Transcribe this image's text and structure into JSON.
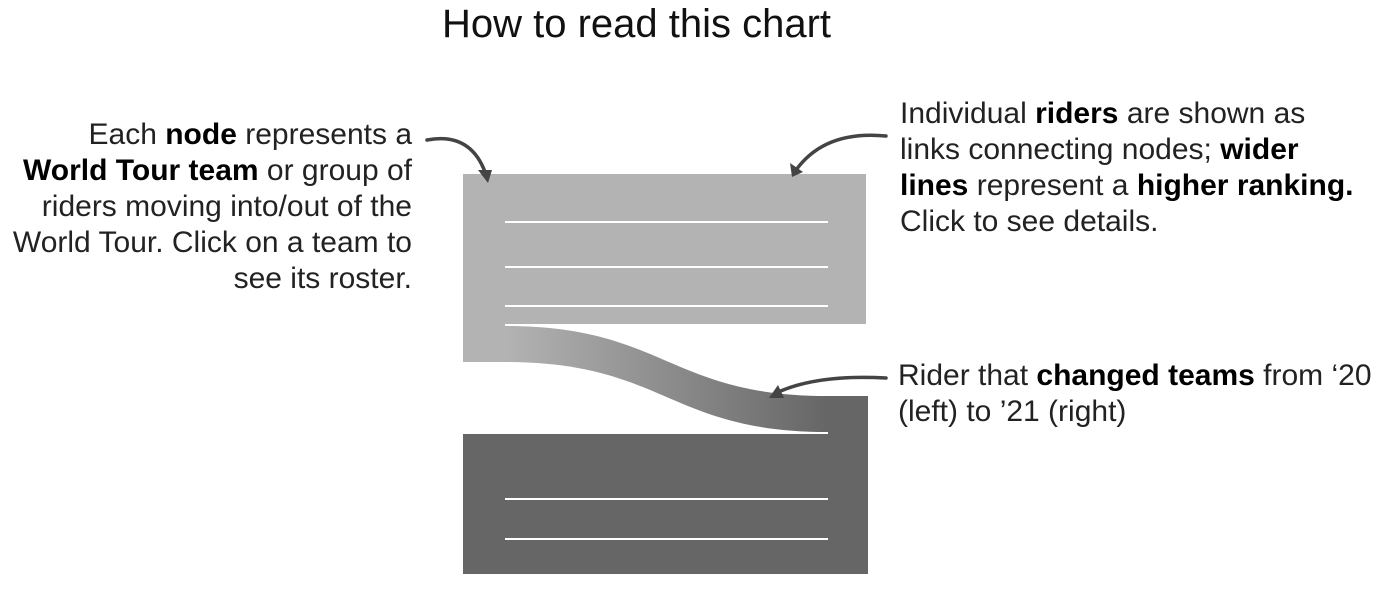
{
  "title": "How to read this chart",
  "annotations": {
    "node": {
      "p1": "Each ",
      "b1": "node",
      "p2": " represents a ",
      "b2": "World Tour team",
      "p3": " or group of riders moving into/out of the World Tour. Click on a team to see its roster."
    },
    "riders": {
      "p1": "Individual ",
      "b1": "riders",
      "p2": " are shown as links connecting nodes; ",
      "b2": "wider lines",
      "p3": " represent a ",
      "b3": "higher ranking.",
      "p4": " Click to see details."
    },
    "change": {
      "p1": "Rider that ",
      "b1": "changed teams",
      "p2": " from ‘20 (left) to ’21 (right)"
    }
  },
  "colors": {
    "team_a": "#b3b3b3",
    "team_b": "#666666",
    "divider": "#ffffff",
    "arrow": "#444444"
  }
}
